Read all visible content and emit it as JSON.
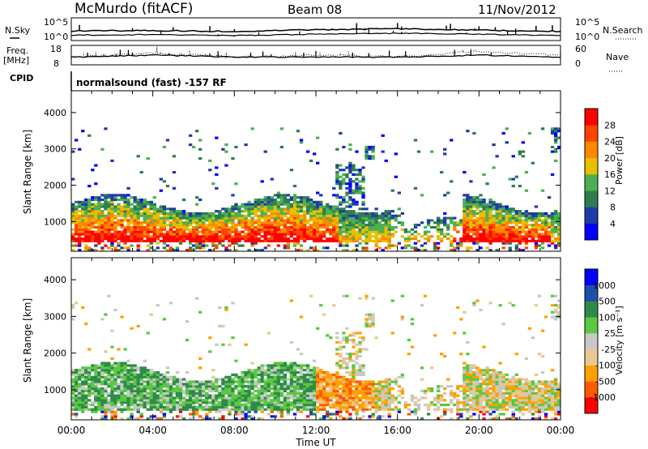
{
  "header": {
    "station": "McMurdo (fitACF)",
    "beam": "Beam 08",
    "date": "11/Nov/2012"
  },
  "top_panels": {
    "nsky_label": "N.Sky",
    "nsky_ticks": [
      "10^5",
      "10^0"
    ],
    "nsearch_label": "N.Search",
    "nsearch_ticks": [
      "10^5",
      "10^0"
    ],
    "freq_label": "Freq.",
    "freq_unit": "[MHz]",
    "freq_ticks": [
      "18",
      "8"
    ],
    "nave_label": "Nave",
    "nave_ticks": [
      "60",
      "0"
    ],
    "cpid_label": "CPID",
    "cpid_text": "normalsound (fast) -157 RF"
  },
  "colors": {
    "power_scale": [
      "#0000ff",
      "#1e3ca8",
      "#2e7d4f",
      "#4cb050",
      "#e8c000",
      "#ff8800",
      "#ff4400",
      "#ff0000"
    ],
    "velocity_scale": [
      "#ff0000",
      "#ff5a00",
      "#ffa000",
      "#e8c890",
      "#c8c8c8",
      "#5ac840",
      "#2e8a4a",
      "#1e4ea8",
      "#0000ff"
    ]
  },
  "chart_data": [
    {
      "type": "line",
      "panel": "N.Sky / N.Search",
      "x": [
        "00:00",
        "04:00",
        "08:00",
        "12:00",
        "16:00",
        "20:00",
        "00:00"
      ],
      "series": [
        {
          "values": [
            2.1,
            2.2,
            2.0,
            2.4,
            2.6,
            2.3,
            2.0
          ]
        },
        {
          "values": [
            1.2,
            1.3,
            1.1,
            1.4,
            1.6,
            1.4,
            1.1
          ]
        }
      ],
      "ylim": [
        0,
        5
      ]
    },
    {
      "type": "line",
      "panel": "Freq. / Nave",
      "x": [
        "00:00",
        "04:00",
        "08:00",
        "12:00",
        "16:00",
        "20:00",
        "00:00"
      ],
      "series": [
        {
          "values": [
            12,
            13,
            12,
            12,
            12,
            13,
            12
          ]
        },
        {
          "values": [
            12,
            14,
            12,
            13,
            12,
            15,
            13
          ]
        }
      ],
      "ylim": [
        8,
        18
      ]
    },
    {
      "type": "heatmap",
      "panel": "Power",
      "x": [
        "00:00",
        "04:00",
        "08:00",
        "12:00",
        "16:00",
        "20:00",
        "00:00"
      ],
      "xlabel": "Time UT",
      "ylabel": "Slant Range [km]",
      "yticks": [
        1000,
        2000,
        3000,
        4000
      ],
      "ylim": [
        180,
        4600
      ],
      "colorbar_label": "Power [dB]",
      "colorbar_ticks": [
        "28",
        "24",
        "20",
        "16",
        "12",
        "8",
        "4"
      ],
      "colorbar_range": [
        0,
        32
      ]
    },
    {
      "type": "heatmap",
      "panel": "Velocity",
      "x": [
        "00:00",
        "04:00",
        "08:00",
        "12:00",
        "16:00",
        "20:00",
        "00:00"
      ],
      "xlabel": "Time UT",
      "ylabel": "Slant Range [km]",
      "yticks": [
        1000,
        2000,
        3000,
        4000
      ],
      "ylim": [
        180,
        4600
      ],
      "colorbar_label": "Velocity [m s⁻¹]",
      "colorbar_ticks": [
        "1000",
        "500",
        "100",
        "25",
        "-25",
        "-100",
        "-500",
        "-1000"
      ]
    }
  ]
}
